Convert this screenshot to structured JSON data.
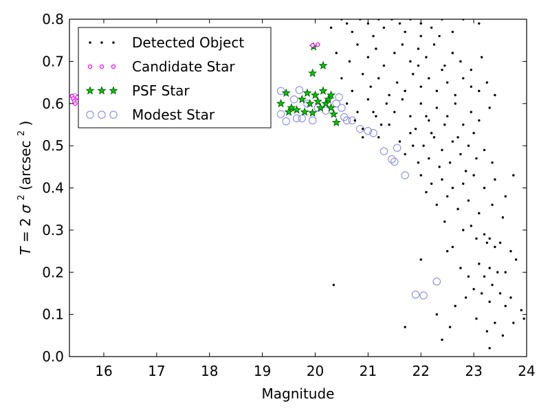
{
  "chart_data": {
    "type": "scatter",
    "title": "",
    "xlabel": "Magnitude",
    "ylabel_parts": {
      "prefix": "T",
      "eq": " = 2",
      "sigma": "σ",
      "sq": "2",
      "paren_open": " (arcsec",
      "unit_sq": "2",
      "paren_close": ")"
    },
    "xlim": [
      15.35,
      24.0
    ],
    "ylim": [
      0.0,
      0.8
    ],
    "xticks": [
      16,
      17,
      18,
      19,
      20,
      21,
      22,
      23,
      24
    ],
    "yticks": [
      0.0,
      0.1,
      0.2,
      0.3,
      0.4,
      0.5,
      0.6,
      0.7,
      0.8
    ],
    "ytick_labels": [
      "0.0",
      "0.1",
      "0.2",
      "0.3",
      "0.4",
      "0.5",
      "0.6",
      "0.7",
      "0.8"
    ],
    "xtick_labels": [
      "16",
      "17",
      "18",
      "19",
      "20",
      "21",
      "22",
      "23",
      "24"
    ],
    "grid": false,
    "legend_position": "top-left",
    "colors": {
      "detected": "#000000",
      "candidate": "#ff00ff",
      "psf_fill": "#00cc00",
      "psf_edge": "#006400",
      "modest": "#8a8ae6"
    },
    "series": [
      {
        "name": "Detected Object",
        "marker": "dot",
        "points": [
          [
            20.3,
            0.78
          ],
          [
            20.5,
            0.8
          ],
          [
            20.6,
            0.79
          ],
          [
            20.7,
            0.77
          ],
          [
            20.85,
            0.8
          ],
          [
            21.0,
            0.79
          ],
          [
            21.1,
            0.76
          ],
          [
            21.2,
            0.8
          ],
          [
            21.3,
            0.78
          ],
          [
            21.45,
            0.8
          ],
          [
            21.6,
            0.79
          ],
          [
            21.8,
            0.8
          ],
          [
            22.0,
            0.79
          ],
          [
            22.2,
            0.78
          ],
          [
            22.4,
            0.8
          ],
          [
            22.6,
            0.77
          ],
          [
            22.8,
            0.8
          ],
          [
            23.1,
            0.79
          ],
          [
            20.4,
            0.72
          ],
          [
            20.65,
            0.7
          ],
          [
            20.8,
            0.74
          ],
          [
            21.0,
            0.71
          ],
          [
            21.15,
            0.73
          ],
          [
            21.3,
            0.69
          ],
          [
            21.5,
            0.72
          ],
          [
            21.65,
            0.74
          ],
          [
            21.8,
            0.7
          ],
          [
            21.95,
            0.73
          ],
          [
            22.1,
            0.71
          ],
          [
            22.25,
            0.74
          ],
          [
            22.45,
            0.69
          ],
          [
            22.6,
            0.72
          ],
          [
            22.75,
            0.7
          ],
          [
            22.95,
            0.68
          ],
          [
            23.15,
            0.71
          ],
          [
            22.0,
            0.76
          ],
          [
            21.7,
            0.77
          ],
          [
            22.35,
            0.76
          ],
          [
            20.5,
            0.66
          ],
          [
            20.7,
            0.63
          ],
          [
            20.9,
            0.67
          ],
          [
            21.05,
            0.64
          ],
          [
            21.2,
            0.66
          ],
          [
            21.4,
            0.62
          ],
          [
            21.55,
            0.65
          ],
          [
            21.7,
            0.63
          ],
          [
            21.85,
            0.67
          ],
          [
            22.0,
            0.64
          ],
          [
            22.15,
            0.66
          ],
          [
            22.3,
            0.63
          ],
          [
            22.5,
            0.65
          ],
          [
            22.65,
            0.62
          ],
          [
            22.8,
            0.66
          ],
          [
            22.95,
            0.64
          ],
          [
            23.1,
            0.63
          ],
          [
            23.25,
            0.65
          ],
          [
            21.95,
            0.69
          ],
          [
            22.4,
            0.68
          ],
          [
            20.6,
            0.6
          ],
          [
            20.8,
            0.58
          ],
          [
            21.0,
            0.61
          ],
          [
            21.15,
            0.57
          ],
          [
            21.35,
            0.6
          ],
          [
            21.5,
            0.58
          ],
          [
            21.65,
            0.61
          ],
          [
            21.8,
            0.57
          ],
          [
            22.0,
            0.6
          ],
          [
            22.15,
            0.56
          ],
          [
            22.3,
            0.59
          ],
          [
            22.5,
            0.57
          ],
          [
            22.65,
            0.6
          ],
          [
            22.8,
            0.55
          ],
          [
            22.95,
            0.58
          ],
          [
            23.1,
            0.56
          ],
          [
            23.3,
            0.59
          ],
          [
            21.9,
            0.54
          ],
          [
            22.2,
            0.53
          ],
          [
            22.45,
            0.55
          ],
          [
            20.9,
            0.54
          ],
          [
            21.2,
            0.52
          ],
          [
            21.4,
            0.55
          ],
          [
            21.6,
            0.51
          ],
          [
            21.8,
            0.53
          ],
          [
            22.05,
            0.5
          ],
          [
            22.25,
            0.52
          ],
          [
            22.4,
            0.49
          ],
          [
            22.6,
            0.51
          ],
          [
            22.75,
            0.48
          ],
          [
            22.9,
            0.5
          ],
          [
            23.05,
            0.47
          ],
          [
            23.2,
            0.49
          ],
          [
            23.35,
            0.46
          ],
          [
            21.7,
            0.48
          ],
          [
            21.95,
            0.46
          ],
          [
            22.15,
            0.47
          ],
          [
            22.35,
            0.45
          ],
          [
            22.55,
            0.46
          ],
          [
            22.85,
            0.44
          ],
          [
            22.0,
            0.43
          ],
          [
            22.2,
            0.41
          ],
          [
            22.4,
            0.42
          ],
          [
            22.6,
            0.4
          ],
          [
            22.8,
            0.41
          ],
          [
            23.0,
            0.43
          ],
          [
            23.2,
            0.4
          ],
          [
            23.4,
            0.42
          ],
          [
            23.75,
            0.43
          ],
          [
            22.5,
            0.38
          ],
          [
            22.3,
            0.36
          ],
          [
            22.7,
            0.35
          ],
          [
            22.9,
            0.37
          ],
          [
            23.1,
            0.34
          ],
          [
            23.35,
            0.36
          ],
          [
            23.6,
            0.38
          ],
          [
            22.1,
            0.39
          ],
          [
            23.55,
            0.33
          ],
          [
            22.45,
            0.32
          ],
          [
            22.95,
            0.31
          ],
          [
            23.2,
            0.29
          ],
          [
            23.3,
            0.28
          ],
          [
            23.25,
            0.27
          ],
          [
            23.4,
            0.26
          ],
          [
            23.5,
            0.27
          ],
          [
            22.8,
            0.3
          ],
          [
            23.05,
            0.28
          ],
          [
            22.6,
            0.26
          ],
          [
            22.5,
            0.25
          ],
          [
            23.7,
            0.25
          ],
          [
            23.1,
            0.22
          ],
          [
            23.3,
            0.21
          ],
          [
            23.45,
            0.2
          ],
          [
            23.2,
            0.19
          ],
          [
            23.6,
            0.2
          ],
          [
            22.75,
            0.21
          ],
          [
            22.9,
            0.19
          ],
          [
            23.8,
            0.23
          ],
          [
            22.0,
            0.23
          ],
          [
            23.35,
            0.17
          ],
          [
            23.0,
            0.16
          ],
          [
            23.15,
            0.15
          ],
          [
            23.5,
            0.15
          ],
          [
            23.7,
            0.14
          ],
          [
            22.85,
            0.14
          ],
          [
            23.3,
            0.13
          ],
          [
            23.6,
            0.12
          ],
          [
            23.9,
            0.11
          ],
          [
            22.65,
            0.12
          ],
          [
            23.95,
            0.09
          ],
          [
            22.3,
            0.1
          ],
          [
            23.05,
            0.09
          ],
          [
            23.4,
            0.08
          ],
          [
            23.75,
            0.08
          ],
          [
            22.55,
            0.07
          ],
          [
            21.7,
            0.07
          ],
          [
            23.25,
            0.06
          ],
          [
            23.55,
            0.05
          ],
          [
            22.4,
            0.04
          ],
          [
            23.3,
            0.02
          ],
          [
            20.35,
            0.17
          ],
          [
            20.9,
            0.52
          ],
          [
            20.75,
            0.56
          ],
          [
            21.1,
            0.58
          ],
          [
            21.25,
            0.55
          ],
          [
            22.7,
            0.52
          ],
          [
            23.0,
            0.53
          ],
          [
            21.85,
            0.5
          ],
          [
            22.1,
            0.57
          ],
          [
            23.4,
            0.62
          ]
        ]
      },
      {
        "name": "Candidate Star",
        "marker": "small-circle",
        "points": [
          [
            15.4,
            0.618
          ],
          [
            15.42,
            0.612
          ],
          [
            15.44,
            0.606
          ],
          [
            15.46,
            0.6
          ],
          [
            15.5,
            0.615
          ],
          [
            15.55,
            0.605
          ],
          [
            15.6,
            0.61
          ],
          [
            19.95,
            0.738
          ],
          [
            20.05,
            0.74
          ]
        ]
      },
      {
        "name": "PSF Star",
        "marker": "star",
        "points": [
          [
            19.35,
            0.6
          ],
          [
            19.45,
            0.625
          ],
          [
            19.55,
            0.59
          ],
          [
            19.65,
            0.585
          ],
          [
            19.75,
            0.61
          ],
          [
            19.85,
            0.625
          ],
          [
            19.9,
            0.6
          ],
          [
            19.95,
            0.578
          ],
          [
            20.0,
            0.62
          ],
          [
            20.05,
            0.605
          ],
          [
            20.1,
            0.59
          ],
          [
            20.15,
            0.63
          ],
          [
            20.2,
            0.6
          ],
          [
            20.25,
            0.61
          ],
          [
            20.3,
            0.62
          ],
          [
            20.35,
            0.575
          ],
          [
            20.4,
            0.555
          ],
          [
            20.3,
            0.59
          ],
          [
            19.95,
            0.672
          ],
          [
            20.15,
            0.69
          ],
          [
            19.97,
            0.735
          ],
          [
            19.5,
            0.58
          ],
          [
            19.8,
            0.58
          ]
        ]
      },
      {
        "name": "Modest Star",
        "marker": "open-circle",
        "points": [
          [
            19.35,
            0.63
          ],
          [
            19.7,
            0.632
          ],
          [
            19.6,
            0.61
          ],
          [
            19.45,
            0.558
          ],
          [
            19.75,
            0.565
          ],
          [
            19.95,
            0.56
          ],
          [
            20.05,
            0.59
          ],
          [
            20.2,
            0.583
          ],
          [
            20.5,
            0.59
          ],
          [
            20.55,
            0.568
          ],
          [
            20.6,
            0.56
          ],
          [
            20.7,
            0.56
          ],
          [
            20.85,
            0.54
          ],
          [
            21.0,
            0.535
          ],
          [
            21.1,
            0.53
          ],
          [
            21.3,
            0.487
          ],
          [
            21.45,
            0.468
          ],
          [
            21.5,
            0.462
          ],
          [
            21.55,
            0.495
          ],
          [
            21.7,
            0.43
          ],
          [
            21.9,
            0.147
          ],
          [
            22.05,
            0.145
          ],
          [
            22.3,
            0.178
          ],
          [
            15.45,
            0.615
          ],
          [
            15.7,
            0.605
          ],
          [
            19.85,
            0.6
          ],
          [
            20.4,
            0.6
          ],
          [
            20.45,
            0.615
          ],
          [
            19.35,
            0.575
          ],
          [
            19.65,
            0.565
          ]
        ]
      }
    ],
    "legend": {
      "items": [
        "Detected Object",
        "Candidate Star",
        "PSF Star",
        "Modest Star"
      ]
    }
  }
}
